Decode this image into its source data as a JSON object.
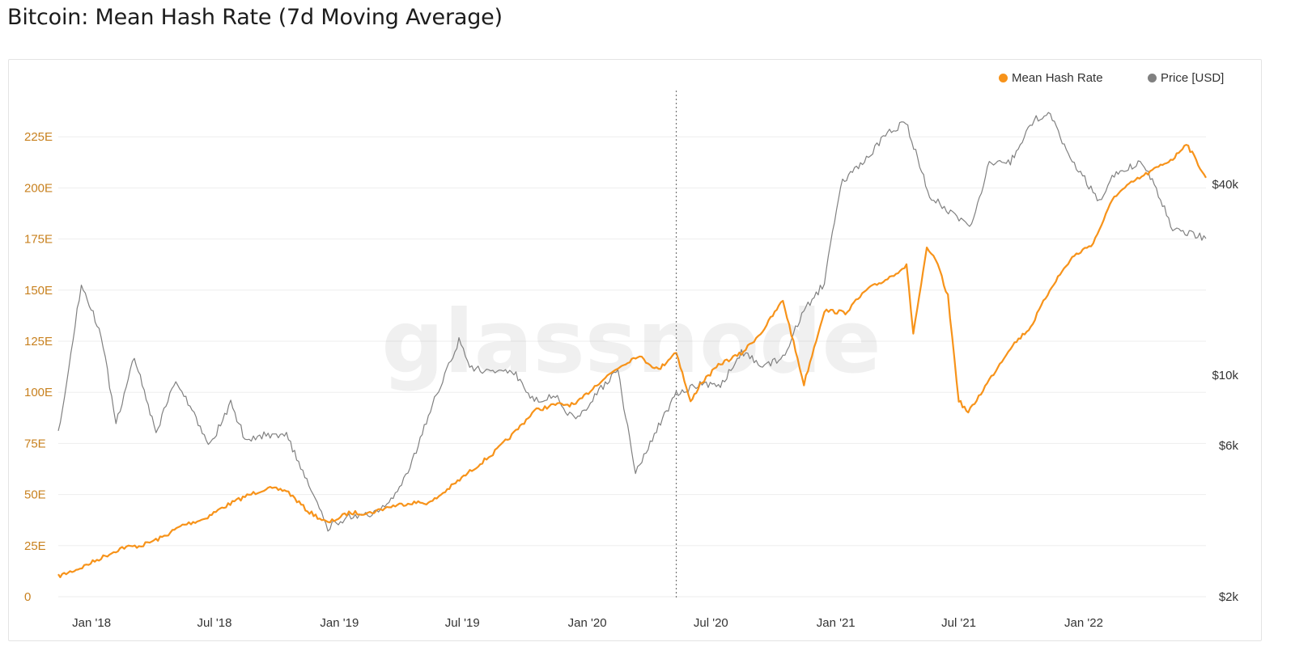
{
  "title": "Bitcoin: Mean Hash Rate (7d Moving Average)",
  "watermark": "glassnode",
  "colors": {
    "hash": "#f7931a",
    "price": "#808080",
    "grid": "#eeeeee",
    "axis_left": "#c8811f",
    "axis_right": "#333333"
  },
  "legend": [
    {
      "label": "Mean Hash Rate",
      "color": "#f7931a"
    },
    {
      "label": "Price [USD]",
      "color": "#808080"
    }
  ],
  "chart_data": {
    "type": "line",
    "title": "Bitcoin: Mean Hash Rate (7d Moving Average)",
    "x_range": [
      "2017-11-13",
      "2022-06-30"
    ],
    "x_ticks": [
      {
        "date": "2018-01-01",
        "label": "Jan '18"
      },
      {
        "date": "2018-07-01",
        "label": "Jul '18"
      },
      {
        "date": "2019-01-01",
        "label": "Jan '19"
      },
      {
        "date": "2019-07-01",
        "label": "Jul '19"
      },
      {
        "date": "2020-01-01",
        "label": "Jan '20"
      },
      {
        "date": "2020-07-01",
        "label": "Jul '20"
      },
      {
        "date": "2021-01-01",
        "label": "Jan '21"
      },
      {
        "date": "2021-07-01",
        "label": "Jul '21"
      },
      {
        "date": "2022-01-01",
        "label": "Jan '22"
      }
    ],
    "y_left": {
      "unit": "EH/s",
      "range": [
        0,
        250
      ],
      "ticks": [
        0,
        25,
        50,
        75,
        100,
        125,
        150,
        175,
        200,
        225
      ],
      "tick_labels": [
        "0",
        "25E",
        "50E",
        "75E",
        "100E",
        "125E",
        "150E",
        "175E",
        "200E",
        "225E"
      ]
    },
    "y_right": {
      "scale": "log",
      "unit": "USD",
      "range": [
        2000,
        100000
      ],
      "ticks": [
        2000,
        6000,
        10000,
        40000
      ],
      "tick_labels": [
        "$2k",
        "$6k",
        "$10k",
        "$40k"
      ]
    },
    "grid": true,
    "legend_position": "top-right",
    "annotations": [
      {
        "type": "vertical-dotted-line",
        "date": "2020-05-11"
      }
    ],
    "series": [
      {
        "name": "Mean Hash Rate",
        "axis": "left",
        "color": "#f7931a",
        "points": [
          [
            "2017-11-13",
            10
          ],
          [
            "2017-12-15",
            14
          ],
          [
            "2018-01-15",
            19
          ],
          [
            "2018-02-15",
            24
          ],
          [
            "2018-03-15",
            25
          ],
          [
            "2018-04-15",
            29
          ],
          [
            "2018-05-15",
            35
          ],
          [
            "2018-06-15",
            38
          ],
          [
            "2018-07-15",
            44
          ],
          [
            "2018-08-15",
            49
          ],
          [
            "2018-09-15",
            53
          ],
          [
            "2018-10-15",
            52
          ],
          [
            "2018-11-15",
            42
          ],
          [
            "2018-12-15",
            36
          ],
          [
            "2019-01-15",
            41
          ],
          [
            "2019-02-15",
            41
          ],
          [
            "2019-03-15",
            44
          ],
          [
            "2019-04-15",
            46
          ],
          [
            "2019-05-15",
            46
          ],
          [
            "2019-06-15",
            54
          ],
          [
            "2019-07-15",
            62
          ],
          [
            "2019-08-15",
            70
          ],
          [
            "2019-09-15",
            80
          ],
          [
            "2019-10-15",
            91
          ],
          [
            "2019-11-15",
            94
          ],
          [
            "2019-12-15",
            94
          ],
          [
            "2020-01-15",
            104
          ],
          [
            "2020-02-15",
            112
          ],
          [
            "2020-03-15",
            118
          ],
          [
            "2020-04-15",
            111
          ],
          [
            "2020-05-11",
            120
          ],
          [
            "2020-06-01",
            95
          ],
          [
            "2020-06-15",
            104
          ],
          [
            "2020-07-15",
            114
          ],
          [
            "2020-08-15",
            119
          ],
          [
            "2020-09-15",
            130
          ],
          [
            "2020-10-15",
            145
          ],
          [
            "2020-11-15",
            104
          ],
          [
            "2020-12-15",
            140
          ],
          [
            "2021-01-15",
            139
          ],
          [
            "2021-02-15",
            150
          ],
          [
            "2021-03-15",
            155
          ],
          [
            "2021-04-15",
            162
          ],
          [
            "2021-04-25",
            129
          ],
          [
            "2021-05-15",
            170
          ],
          [
            "2021-05-28",
            165
          ],
          [
            "2021-06-15",
            147
          ],
          [
            "2021-07-01",
            96
          ],
          [
            "2021-07-15",
            90
          ],
          [
            "2021-08-15",
            106
          ],
          [
            "2021-09-15",
            122
          ],
          [
            "2021-10-15",
            132
          ],
          [
            "2021-11-15",
            152
          ],
          [
            "2021-12-15",
            166
          ],
          [
            "2022-01-15",
            173
          ],
          [
            "2022-02-15",
            196
          ],
          [
            "2022-03-15",
            203
          ],
          [
            "2022-04-15",
            209
          ],
          [
            "2022-05-15",
            215
          ],
          [
            "2022-06-01",
            222
          ],
          [
            "2022-06-30",
            205
          ]
        ]
      },
      {
        "name": "Price [USD]",
        "axis": "right",
        "color": "#808080",
        "points": [
          [
            "2017-11-13",
            6500
          ],
          [
            "2017-12-17",
            19500
          ],
          [
            "2018-01-15",
            13500
          ],
          [
            "2018-02-06",
            7000
          ],
          [
            "2018-03-05",
            11500
          ],
          [
            "2018-04-06",
            6600
          ],
          [
            "2018-05-05",
            9700
          ],
          [
            "2018-06-25",
            6000
          ],
          [
            "2018-07-25",
            8200
          ],
          [
            "2018-08-15",
            6300
          ],
          [
            "2018-09-15",
            6500
          ],
          [
            "2018-10-15",
            6500
          ],
          [
            "2018-11-20",
            4300
          ],
          [
            "2018-12-15",
            3300
          ],
          [
            "2019-01-15",
            3600
          ],
          [
            "2019-02-15",
            3600
          ],
          [
            "2019-03-15",
            3900
          ],
          [
            "2019-04-15",
            5100
          ],
          [
            "2019-05-15",
            7800
          ],
          [
            "2019-06-26",
            12800
          ],
          [
            "2019-07-15",
            10500
          ],
          [
            "2019-08-15",
            10300
          ],
          [
            "2019-09-15",
            10200
          ],
          [
            "2019-10-15",
            8300
          ],
          [
            "2019-11-15",
            8600
          ],
          [
            "2019-12-15",
            7100
          ],
          [
            "2020-01-15",
            8800
          ],
          [
            "2020-02-15",
            10300
          ],
          [
            "2020-03-12",
            4900
          ],
          [
            "2020-04-15",
            6900
          ],
          [
            "2020-05-11",
            8700
          ],
          [
            "2020-06-15",
            9400
          ],
          [
            "2020-07-15",
            9200
          ],
          [
            "2020-08-15",
            11800
          ],
          [
            "2020-09-15",
            10700
          ],
          [
            "2020-10-15",
            11400
          ],
          [
            "2020-11-15",
            16000
          ],
          [
            "2020-12-15",
            19500
          ],
          [
            "2021-01-08",
            40000
          ],
          [
            "2021-02-15",
            48000
          ],
          [
            "2021-03-15",
            57000
          ],
          [
            "2021-04-14",
            63000
          ],
          [
            "2021-05-19",
            37000
          ],
          [
            "2021-06-22",
            32000
          ],
          [
            "2021-07-20",
            30000
          ],
          [
            "2021-08-15",
            47000
          ],
          [
            "2021-09-15",
            47000
          ],
          [
            "2021-10-20",
            64000
          ],
          [
            "2021-11-10",
            67000
          ],
          [
            "2021-12-15",
            48000
          ],
          [
            "2022-01-24",
            35000
          ],
          [
            "2022-02-15",
            43000
          ],
          [
            "2022-03-28",
            47000
          ],
          [
            "2022-04-15",
            40000
          ],
          [
            "2022-05-12",
            29000
          ],
          [
            "2022-06-30",
            27000
          ]
        ]
      }
    ]
  }
}
